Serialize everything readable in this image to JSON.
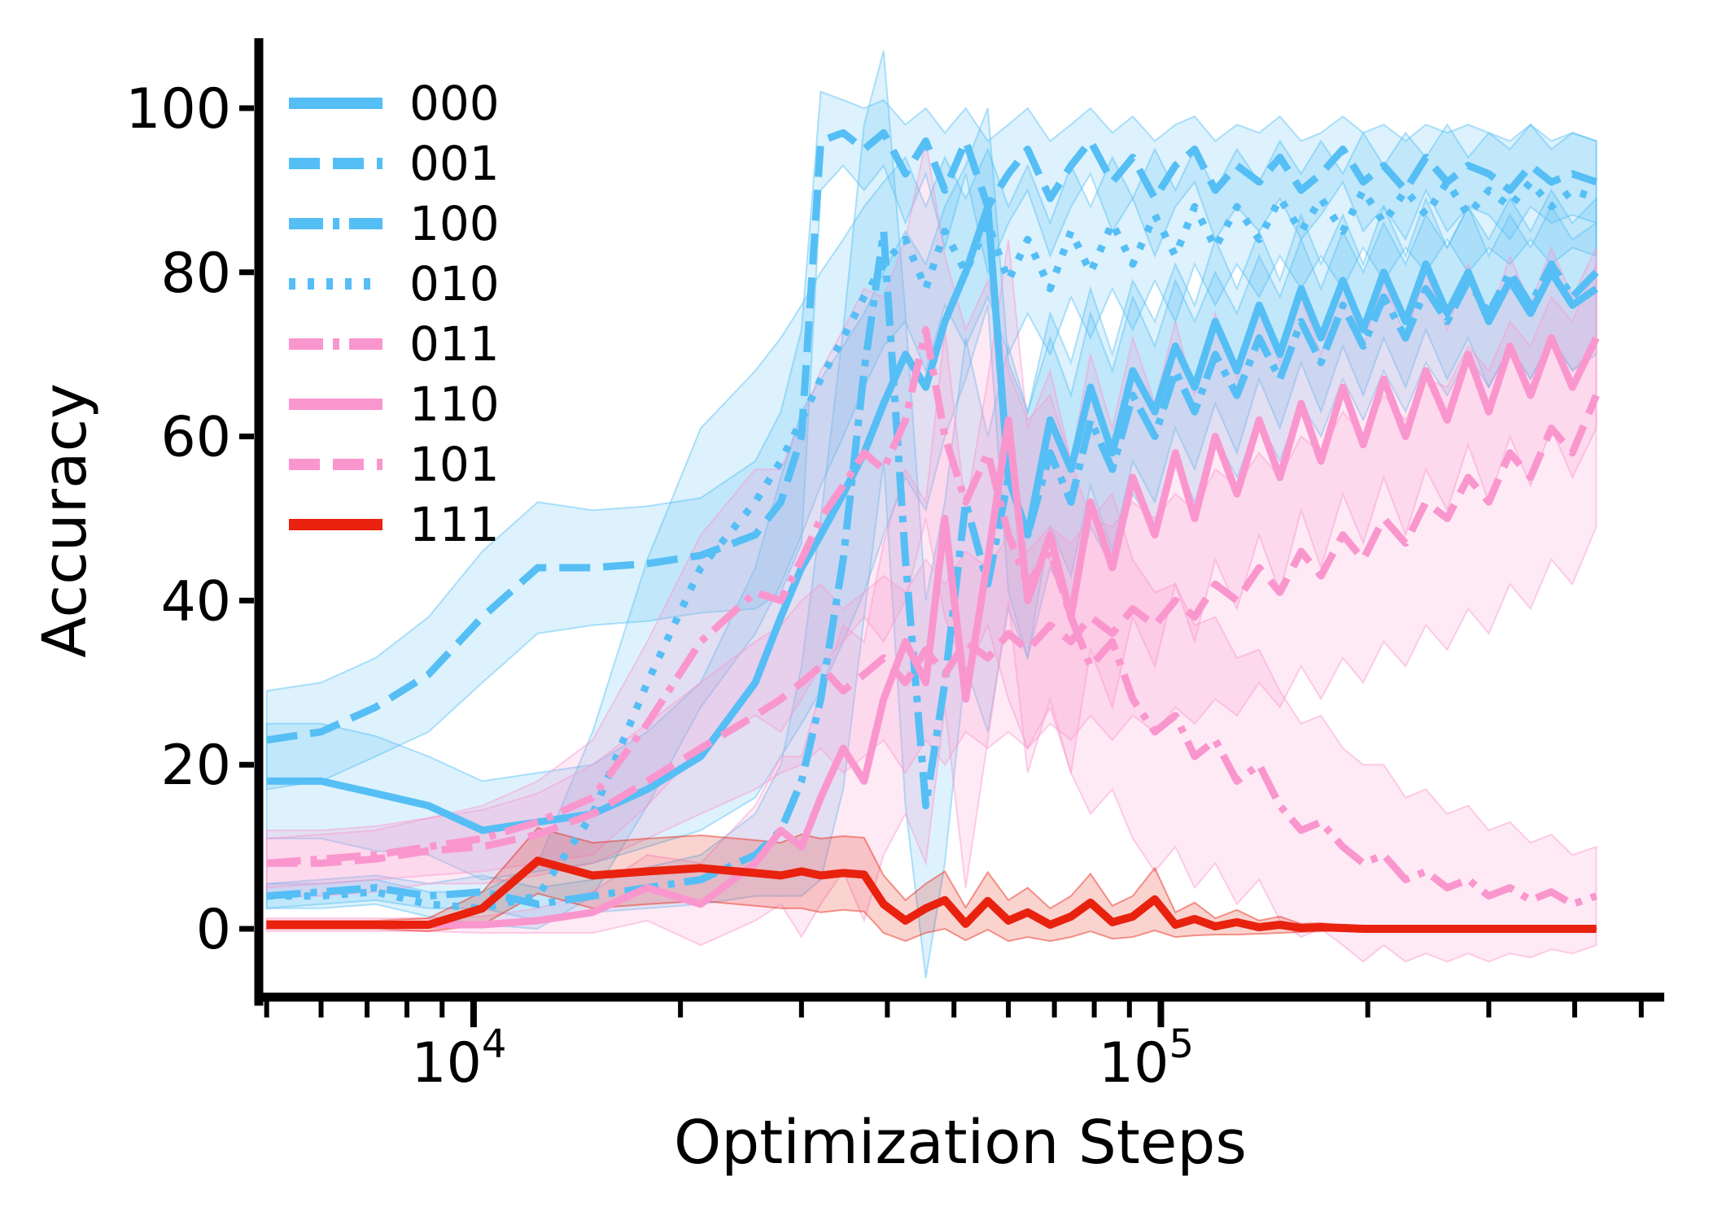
{
  "chart_data": {
    "type": "line",
    "title": "",
    "xlabel": "Optimization Steps",
    "ylabel": "Accuracy",
    "x_scale": "log",
    "xlim": [
      4870,
      540000
    ],
    "ylim": [
      -8.8,
      108.5
    ],
    "yticks": [
      0,
      20,
      40,
      60,
      80,
      100
    ],
    "xticks_major": [
      {
        "value": 10000,
        "base": "10",
        "exponent": "4"
      },
      {
        "value": 100000,
        "base": "10",
        "exponent": "5"
      }
    ],
    "grid": false,
    "legend_position": "upper left",
    "legend_frame": false,
    "colors": {
      "blue": "#55BEF5",
      "pink": "#FA96CE",
      "red": "#E8220E"
    },
    "band_opacity": 0.2,
    "x": [
      5000,
      6000,
      7200,
      8600,
      10300,
      12400,
      14900,
      17900,
      21400,
      25700,
      28000,
      30000,
      32000,
      34500,
      37000,
      39500,
      42500,
      45500,
      48500,
      52000,
      56000,
      60000,
      64000,
      69000,
      74000,
      79000,
      85000,
      91000,
      98000,
      105000,
      112000,
      120000,
      129000,
      139000,
      149000,
      160000,
      171000,
      184000,
      197000,
      211000,
      227000,
      243000,
      261000,
      280000,
      300000,
      322000,
      345000,
      370000,
      397000,
      430000
    ],
    "series": [
      {
        "name": "000",
        "color": "blue",
        "style": "solid",
        "values": [
          18,
          18,
          16.5,
          15,
          12,
          13,
          14,
          17,
          21,
          30,
          38,
          44,
          48,
          53,
          58,
          64,
          70,
          66,
          74,
          80,
          88,
          55,
          48,
          62,
          56,
          66,
          58,
          68,
          63,
          71,
          66,
          74,
          68,
          76,
          70,
          78,
          72,
          79,
          73,
          80,
          74,
          81,
          75,
          80,
          74,
          79,
          75,
          80,
          76,
          78
        ],
        "band": [
          7,
          7,
          7,
          6,
          6,
          6,
          6,
          7,
          9,
          14,
          17,
          19,
          19,
          18,
          17,
          16,
          15,
          15,
          14,
          13,
          12,
          14,
          15,
          13,
          13,
          12,
          12,
          11,
          11,
          10,
          10,
          10,
          10,
          9,
          9,
          9,
          9,
          8,
          8,
          8,
          8,
          8,
          8,
          8,
          8,
          8,
          8,
          8,
          8,
          8
        ]
      },
      {
        "name": "001",
        "color": "blue",
        "style": "dashed",
        "values": [
          23,
          24,
          27,
          31,
          38,
          44,
          44,
          44.5,
          45.5,
          48,
          52,
          60,
          96,
          97,
          95,
          97,
          92,
          96,
          90,
          96,
          88,
          92,
          95,
          89,
          93,
          96,
          91,
          94,
          89,
          93,
          95,
          90,
          93,
          91,
          94,
          90,
          92,
          95,
          91,
          93,
          90,
          94,
          91,
          93,
          92,
          90,
          93,
          91,
          92,
          91
        ],
        "band": [
          6,
          6,
          6,
          7,
          8,
          8,
          7,
          7,
          7,
          9,
          11,
          13,
          6,
          4,
          5,
          4,
          6,
          4,
          7,
          4,
          8,
          6,
          5,
          7,
          5,
          4,
          6,
          5,
          7,
          5,
          4,
          6,
          5,
          6,
          5,
          6,
          5,
          4,
          6,
          5,
          6,
          4,
          6,
          5,
          5,
          6,
          5,
          5,
          5,
          5
        ]
      },
      {
        "name": "100",
        "color": "blue",
        "style": "dashdot",
        "values": [
          4,
          4.5,
          5,
          4,
          4.5,
          3,
          4,
          5,
          6,
          9,
          12,
          18,
          28,
          45,
          68,
          85,
          45,
          15,
          30,
          52,
          42,
          55,
          48,
          58,
          52,
          62,
          56,
          65,
          60,
          68,
          63,
          70,
          65,
          72,
          67,
          74,
          69,
          76,
          71,
          77,
          72,
          78,
          74,
          79,
          75,
          80,
          76,
          81,
          77,
          80
        ],
        "band": [
          1.5,
          1.5,
          1.5,
          1.5,
          2,
          2,
          2,
          2.5,
          3,
          5,
          8,
          14,
          22,
          28,
          30,
          28,
          30,
          25,
          22,
          20,
          18,
          16,
          15,
          14,
          13,
          13,
          12,
          12,
          11,
          11,
          11,
          10,
          10,
          10,
          10,
          10,
          9,
          9,
          9,
          9,
          9,
          9,
          9,
          9,
          9,
          9,
          9,
          9,
          9,
          9
        ]
      },
      {
        "name": "010",
        "color": "blue",
        "style": "dotted",
        "values": [
          4,
          4,
          4.5,
          3,
          2.5,
          4,
          14,
          30,
          44,
          52,
          57,
          62,
          67,
          72,
          77,
          81,
          84,
          78,
          85,
          80,
          86,
          79,
          84,
          78,
          85,
          80,
          86,
          81,
          87,
          82,
          88,
          83,
          88,
          84,
          89,
          85,
          89,
          85,
          90,
          86,
          90,
          87,
          91,
          87,
          90,
          88,
          91,
          88,
          90,
          89
        ],
        "band": [
          1.5,
          1.5,
          1.5,
          1.5,
          2,
          4,
          10,
          15,
          17,
          16,
          15,
          14,
          13,
          12,
          11,
          10,
          10,
          10,
          9,
          9,
          9,
          9,
          9,
          8,
          8,
          8,
          8,
          8,
          8,
          8,
          7,
          7,
          7,
          7,
          7,
          7,
          7,
          7,
          7,
          7,
          7,
          7,
          7,
          7,
          7,
          7,
          7,
          7,
          7,
          7
        ]
      },
      {
        "name": "011",
        "color": "pink",
        "style": "dashdot",
        "values": [
          8,
          8.5,
          9,
          10,
          11,
          13,
          16,
          25,
          35,
          41,
          40,
          45,
          50,
          54,
          58,
          56,
          62,
          73,
          60,
          52,
          58,
          48,
          42,
          46,
          38,
          32,
          35,
          28,
          24,
          26,
          21,
          23,
          18,
          20,
          15,
          12,
          13,
          10,
          8,
          9,
          6,
          7,
          5,
          6,
          4,
          5,
          3.5,
          4.5,
          3,
          4
        ],
        "band": [
          3,
          3,
          3,
          3.5,
          4,
          5,
          7,
          10,
          13,
          15,
          16,
          17,
          18,
          19,
          20,
          21,
          22,
          23,
          22,
          21,
          21,
          20,
          20,
          19,
          19,
          18,
          18,
          17,
          17,
          16,
          16,
          15,
          15,
          14,
          14,
          13,
          13,
          12,
          12,
          11,
          10,
          10,
          9,
          9,
          8,
          8,
          7,
          7,
          6,
          6
        ]
      },
      {
        "name": "110",
        "color": "pink",
        "style": "solid",
        "values": [
          0.5,
          0.5,
          0.5,
          0.5,
          0.5,
          1,
          2,
          5,
          3,
          8,
          12,
          10,
          16,
          22,
          18,
          28,
          35,
          30,
          50,
          28,
          45,
          62,
          40,
          48,
          38,
          52,
          44,
          55,
          48,
          58,
          50,
          60,
          53,
          62,
          55,
          64,
          57,
          66,
          59,
          67,
          60,
          68,
          62,
          70,
          63,
          71,
          65,
          72,
          66,
          72
        ],
        "band": [
          0.8,
          0.8,
          0.8,
          0.8,
          1,
          1.5,
          2.5,
          4,
          5,
          7,
          9,
          11,
          13,
          15,
          17,
          19,
          21,
          22,
          23,
          23,
          22,
          22,
          21,
          20,
          19,
          18,
          17,
          17,
          16,
          16,
          15,
          15,
          14,
          14,
          14,
          13,
          13,
          13,
          12,
          12,
          12,
          12,
          11,
          11,
          11,
          11,
          11,
          11,
          11,
          11
        ]
      },
      {
        "name": "101",
        "color": "pink",
        "style": "dashed",
        "values": [
          8,
          8,
          8.5,
          9.5,
          10,
          11.5,
          14,
          18,
          22,
          26,
          28,
          30,
          32,
          29,
          31,
          33,
          30,
          34,
          31,
          35,
          33,
          36,
          34,
          37,
          35,
          38,
          36,
          39,
          37,
          40,
          38,
          42,
          40,
          44,
          41,
          46,
          43,
          48,
          45,
          50,
          47,
          52,
          50,
          55,
          52,
          58,
          55,
          61,
          58,
          65
        ],
        "band": [
          4,
          4,
          4,
          4,
          4.5,
          5,
          6,
          7,
          8,
          9,
          9,
          10,
          10,
          10,
          10,
          10,
          11,
          11,
          11,
          11,
          11,
          12,
          12,
          12,
          12,
          12,
          13,
          13,
          13,
          13,
          13,
          14,
          14,
          14,
          14,
          14,
          15,
          15,
          15,
          15,
          15,
          15,
          16,
          16,
          16,
          16,
          16,
          16,
          16,
          16
        ]
      },
      {
        "name": "111",
        "color": "red",
        "style": "solid",
        "values": [
          0.5,
          0.5,
          0.5,
          0.5,
          2.5,
          8.3,
          6.5,
          7,
          7.4,
          6.8,
          6.5,
          7,
          6.5,
          6.8,
          6.6,
          3,
          1,
          2.5,
          3.5,
          0.6,
          3.4,
          1,
          2,
          0.5,
          1.5,
          3.2,
          0.8,
          1.5,
          3.6,
          0.5,
          1.2,
          0.3,
          0.8,
          0.2,
          0.5,
          0.1,
          0.2,
          0.1,
          0,
          0,
          0,
          0,
          0,
          0,
          0,
          0,
          0,
          0,
          0,
          0
        ],
        "band": [
          0.5,
          0.5,
          0.5,
          0.8,
          2,
          4,
          4,
          4,
          4,
          4,
          4,
          4.5,
          4.5,
          4.5,
          4.5,
          3.5,
          2.5,
          3,
          3.5,
          2,
          3.5,
          2.5,
          3,
          2,
          2.5,
          3.5,
          2,
          2.5,
          3.8,
          1.5,
          2,
          1,
          1.5,
          0.8,
          1,
          0.5,
          0.5,
          0.3,
          0.2,
          0.2,
          0.2,
          0.1,
          0.1,
          0.1,
          0.1,
          0.1,
          0.1,
          0.1,
          0.1,
          0.1
        ]
      }
    ],
    "legend": [
      {
        "label": "000"
      },
      {
        "label": "001"
      },
      {
        "label": "100"
      },
      {
        "label": "010"
      },
      {
        "label": "011"
      },
      {
        "label": "110"
      },
      {
        "label": "101"
      },
      {
        "label": "111"
      }
    ]
  }
}
